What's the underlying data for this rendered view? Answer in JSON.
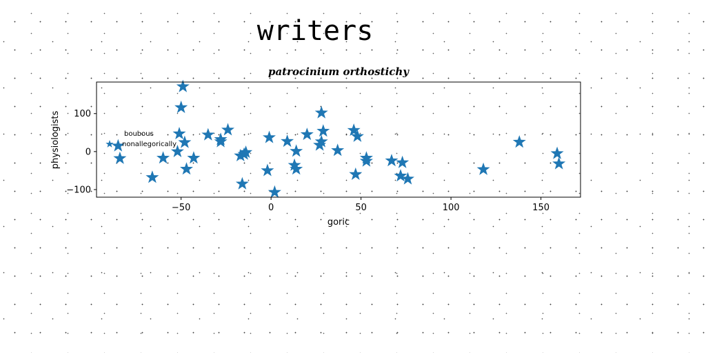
{
  "page_title": "writers",
  "chart_data": {
    "type": "scatter",
    "title": "patrocinium orthostichy",
    "xlabel": "goric",
    "ylabel": "physiologists",
    "xlim": [
      -97,
      172
    ],
    "ylim": [
      -120,
      183
    ],
    "xticks": [
      -50,
      0,
      50,
      100,
      150
    ],
    "yticks": [
      -100,
      0,
      100
    ],
    "grid": false,
    "legend": {
      "placement": "left",
      "title": "boubous",
      "entries": [
        "nonallegorically"
      ]
    },
    "colors": {
      "marker": "#1f77b4"
    },
    "marker": "star",
    "series": [
      {
        "name": "nonallegorically",
        "x": [
          -85,
          -84,
          -66,
          -60,
          -52,
          -51,
          -50,
          -49,
          -48,
          -47,
          -43,
          -35,
          -28,
          -28,
          -24,
          -17,
          -16,
          -15,
          -14,
          -2,
          -1,
          2,
          9,
          13,
          14,
          14,
          20,
          27,
          28,
          28,
          29,
          37,
          46,
          47,
          48,
          53,
          53,
          67,
          72,
          73,
          76,
          118,
          138,
          159,
          160
        ],
        "y": [
          15,
          -18,
          -68,
          -17,
          0,
          47,
          116,
          171,
          24,
          -46,
          -17,
          44,
          26,
          32,
          57,
          -11,
          -85,
          -7,
          -2,
          -50,
          37,
          -107,
          27,
          -36,
          1,
          -46,
          45,
          17,
          26,
          102,
          54,
          3,
          56,
          -60,
          40,
          -17,
          -25,
          -24,
          -64,
          -29,
          -72,
          -47,
          25,
          -5,
          -32
        ]
      }
    ]
  }
}
